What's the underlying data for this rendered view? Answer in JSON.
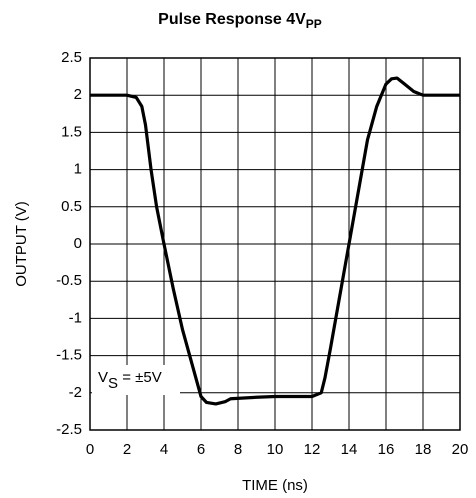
{
  "chart_data": {
    "type": "line",
    "title": {
      "text": "Pulse Response 4V",
      "subscript": "PP"
    },
    "x_label": "TIME (ns)",
    "y_label": "OUTPUT (V)",
    "annotation": {
      "text": "V",
      "subscript": "S",
      "suffix": " = ±5V"
    },
    "x": [
      0,
      2,
      2.5,
      2.8,
      3,
      3.3,
      3.6,
      4,
      4.5,
      5,
      5.5,
      6,
      6.3,
      6.8,
      7.3,
      7.6,
      9,
      10,
      12,
      12.5,
      12.7,
      13,
      13.5,
      14,
      14.5,
      15,
      15.5,
      16,
      16.3,
      16.6,
      17,
      17.5,
      18,
      20
    ],
    "series": [
      {
        "color": "#000000",
        "values": [
          2,
          2,
          1.97,
          1.85,
          1.6,
          1.0,
          0.5,
          0,
          -0.6,
          -1.15,
          -1.6,
          -2.05,
          -2.13,
          -2.15,
          -2.12,
          -2.08,
          -2.06,
          -2.05,
          -2.05,
          -2.0,
          -1.8,
          -1.4,
          -0.7,
          0,
          0.7,
          1.4,
          1.85,
          2.15,
          2.22,
          2.23,
          2.15,
          2.05,
          2.0,
          2.0
        ]
      }
    ],
    "xlim": [
      0,
      20
    ],
    "xticks": [
      0,
      2,
      4,
      6,
      8,
      10,
      12,
      14,
      16,
      18,
      20
    ],
    "ylim": [
      -2.5,
      2.5
    ],
    "yticks": [
      -2.5,
      -2,
      -1.5,
      -1,
      -0.5,
      0,
      0.5,
      1,
      1.5,
      2,
      2.5
    ],
    "grid": true
  }
}
